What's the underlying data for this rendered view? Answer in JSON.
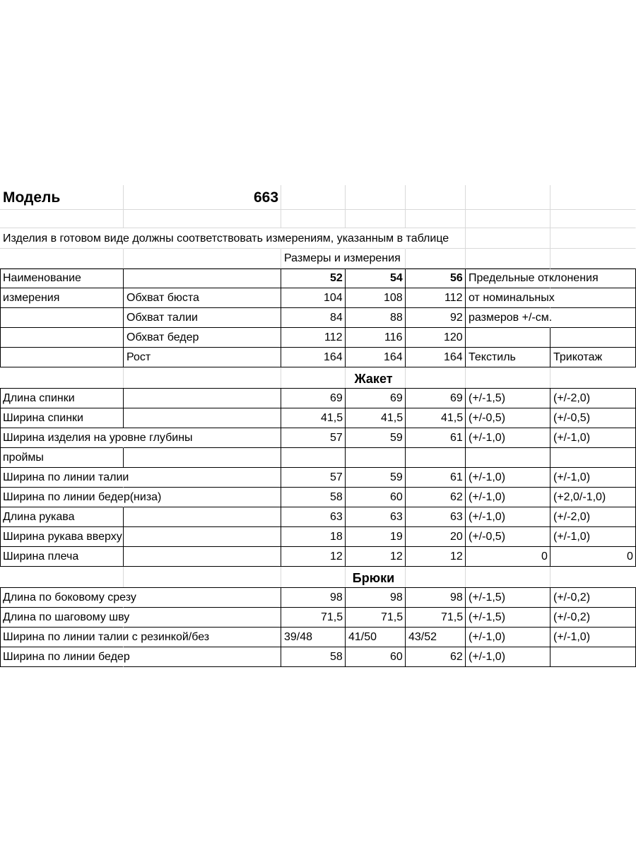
{
  "header": {
    "label": "Модель",
    "model": "663"
  },
  "note": "Изделия в готовом виде должны соответствовать измерениям, указанным в таблице",
  "sizes_caption": "Размеры и измерения",
  "table": {
    "rows": [
      [
        "Наименование",
        null,
        "52",
        "54",
        "56",
        "Предельные отклонения",
        null
      ],
      [
        "измерения",
        "Обхват бюста",
        "104",
        "108",
        "112",
        "от номинальных",
        null
      ],
      [
        null,
        "Обхват талии",
        "84",
        "88",
        "92",
        "размеров +/-см.",
        null
      ],
      [
        null,
        "Обхват бедер",
        "112",
        "116",
        "120",
        null,
        null
      ],
      [
        null,
        "Рост",
        "164",
        "164",
        "164",
        "Текстиль",
        "Трикотаж"
      ]
    ]
  },
  "sections": [
    {
      "title": "Жакет",
      "rows": [
        [
          "Длина спинки",
          null,
          "69",
          "69",
          "69",
          "(+/-1,5)",
          "(+/-2,0)"
        ],
        [
          "Ширина спинки",
          null,
          "41,5",
          "41,5",
          "41,5",
          "(+/-0,5)",
          "(+/-0,5)"
        ],
        [
          "Ширина изделия на уровне глубины",
          null,
          "57",
          "59",
          "61",
          "(+/-1,0)",
          "(+/-1,0)"
        ],
        [
          "проймы",
          null,
          null,
          null,
          null,
          null,
          null
        ],
        [
          "Ширина по линии талии",
          null,
          "57",
          "59",
          "61",
          "(+/-1,0)",
          "(+/-1,0)"
        ],
        [
          "Ширина по линии бедер(низа)",
          null,
          "58",
          "60",
          "62",
          "(+/-1,0)",
          "(+2,0/-1,0)"
        ],
        [
          "Длина рукава",
          null,
          "63",
          "63",
          "63",
          "(+/-1,0)",
          "(+/-2,0)"
        ],
        [
          "Ширина рукава вверху",
          null,
          "18",
          "19",
          "20",
          "(+/-0,5)",
          "(+/-1,0)"
        ],
        [
          "Ширина плеча",
          null,
          "12",
          "12",
          "12",
          "0",
          "0"
        ]
      ]
    },
    {
      "title": "Брюки",
      "rows": [
        [
          "Длина по боковому срезу",
          null,
          "98",
          "98",
          "98",
          "(+/-1,5)",
          "(+/-0,2)"
        ],
        [
          "Длина по шаговому шву",
          null,
          "71,5",
          "71,5",
          "71,5",
          "(+/-1,5)",
          "(+/-0,2)"
        ],
        [
          "Ширина по линии талии с резинкой/без",
          null,
          "39/48",
          "41/50",
          "43/52",
          "(+/-1,0)",
          "(+/-1,0)"
        ],
        [
          "Ширина по линии бедер",
          null,
          "58",
          "60",
          "62",
          "(+/-1,0)",
          null
        ]
      ]
    }
  ]
}
